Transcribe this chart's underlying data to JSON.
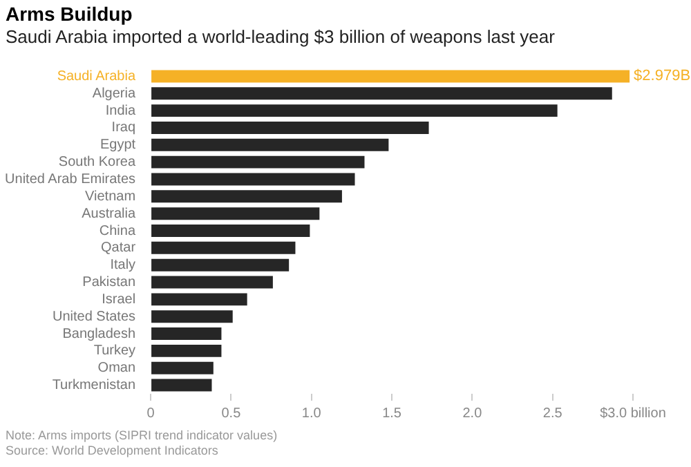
{
  "chart_data": {
    "type": "bar",
    "orientation": "horizontal",
    "title": "Arms Buildup",
    "subtitle": "Saudi Arabia imported a world-leading $3 billion of weapons last year",
    "categories": [
      "Saudi Arabia",
      "Algeria",
      "India",
      "Iraq",
      "Egypt",
      "South Korea",
      "United Arab Emirates",
      "Vietnam",
      "Australia",
      "China",
      "Qatar",
      "Italy",
      "Pakistan",
      "Israel",
      "United States",
      "Bangladesh",
      "Turkey",
      "Oman",
      "Turkmenistan"
    ],
    "values": [
      2.979,
      2.87,
      2.53,
      1.73,
      1.48,
      1.33,
      1.27,
      1.19,
      1.05,
      0.99,
      0.9,
      0.86,
      0.76,
      0.6,
      0.51,
      0.44,
      0.44,
      0.39,
      0.38
    ],
    "colors": [
      "#f5b126",
      "#262626",
      "#262626",
      "#262626",
      "#262626",
      "#262626",
      "#262626",
      "#262626",
      "#262626",
      "#262626",
      "#262626",
      "#262626",
      "#262626",
      "#262626",
      "#262626",
      "#262626",
      "#262626",
      "#262626",
      "#262626"
    ],
    "value_labels": [
      "$2.979B",
      null,
      null,
      null,
      null,
      null,
      null,
      null,
      null,
      null,
      null,
      null,
      null,
      null,
      null,
      null,
      null,
      null,
      null
    ],
    "xlim": [
      0,
      3.0
    ],
    "xticks": [
      0,
      0.5,
      {
        "value": 1,
        "label": "1.0"
      },
      1.5,
      {
        "value": 2,
        "label": "2.0"
      },
      2.5,
      {
        "value": 3,
        "label": "$3.0 billion"
      }
    ],
    "grid": false,
    "legend": false,
    "annotations": [
      "Note: Arms imports (SIPRI trend indicator values)",
      "Source: World Development Indicators"
    ]
  }
}
